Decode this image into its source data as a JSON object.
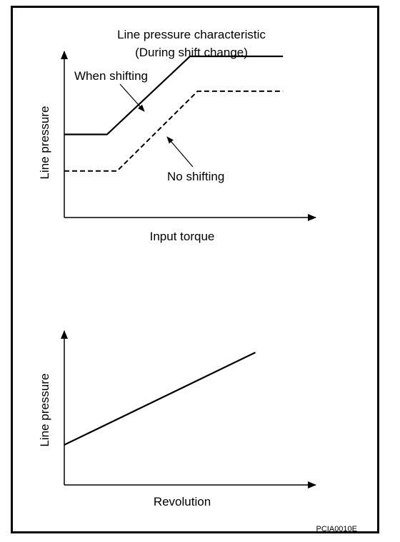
{
  "chart_data": [
    {
      "type": "line",
      "title": "Line pressure characteristic",
      "subtitle": "(During shift change)",
      "xlabel": "Input torque",
      "ylabel": "Line pressure",
      "x_ticks": "none",
      "y_ticks": "none",
      "xlim": [
        0,
        1
      ],
      "ylim": [
        0,
        1
      ],
      "grid": false,
      "legend": "callouts",
      "series": [
        {
          "name": "When shifting",
          "style": "solid",
          "points": [
            [
              0.0,
              0.5
            ],
            [
              0.17,
              0.5
            ],
            [
              0.5,
              0.97
            ],
            [
              0.87,
              0.97
            ]
          ]
        },
        {
          "name": "No shifting",
          "style": "dashed",
          "points": [
            [
              0.0,
              0.28
            ],
            [
              0.21,
              0.28
            ],
            [
              0.53,
              0.76
            ],
            [
              0.87,
              0.76
            ]
          ]
        }
      ]
    },
    {
      "type": "line",
      "title": "",
      "xlabel": "Revolution",
      "ylabel": "Line pressure",
      "x_ticks": "none",
      "y_ticks": "none",
      "xlim": [
        0,
        1
      ],
      "ylim": [
        0,
        1
      ],
      "grid": false,
      "series": [
        {
          "style": "solid",
          "points": [
            [
              0.0,
              0.26
            ],
            [
              0.76,
              0.86
            ]
          ]
        }
      ]
    }
  ],
  "figure_code": "PCIA0010E",
  "colors": {
    "line": "#000000",
    "background": "#ffffff"
  }
}
